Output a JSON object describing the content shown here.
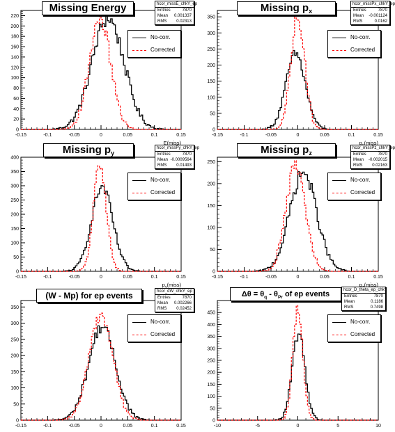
{
  "colors": {
    "nocorr": "#000000",
    "corr": "#ff0000"
  },
  "legend": {
    "nocorr": "No-corr.",
    "corr": "Corrected"
  },
  "stats_labels": {
    "entries": "Entries",
    "mean": "Mean",
    "rms": "RMS"
  },
  "chart_data": [
    {
      "type": "histogram",
      "title": "Missing Energy",
      "xlabel": "E(miss)",
      "xlim": [
        -0.15,
        0.15
      ],
      "ylim": [
        0,
        230
      ],
      "xticks": [
        "-0.15",
        "-0.1",
        "-0.05",
        "0",
        "0.05",
        "0.1",
        "0.15"
      ],
      "yticks": [
        "0",
        "20",
        "40",
        "60",
        "80",
        "100",
        "120",
        "140",
        "160",
        "180",
        "200",
        "220"
      ],
      "stats": {
        "name": "hcor_missE_chkY_ep",
        "entries": "7870",
        "mean": "0.001337",
        "rms": "0.02313"
      },
      "series": [
        {
          "name": "No-corr.",
          "mean": 0.013,
          "sigma": 0.03,
          "peak": 215
        },
        {
          "name": "Corrected",
          "mean": -0.002,
          "sigma": 0.02,
          "peak": 215
        }
      ]
    },
    {
      "type": "histogram",
      "title": "Missing p",
      "title_sub": "x",
      "xlabel": "p",
      "xlabel_sub": "x",
      "xlabel_suffix": "(miss)",
      "xlim": [
        -0.15,
        0.15
      ],
      "ylim": [
        0,
        370
      ],
      "xticks": [
        "-0.15",
        "-0.1",
        "-0.05",
        "0",
        "0.05",
        "0.1",
        "0.15"
      ],
      "yticks": [
        "0",
        "50",
        "100",
        "150",
        "200",
        "250",
        "300",
        "350"
      ],
      "stats": {
        "name": "hcor_missPx_chkY_ep",
        "entries": "7870",
        "mean": "-0.001124",
        "rms": "0.0162"
      },
      "series": [
        {
          "name": "No-corr.",
          "mean": -0.004,
          "sigma": 0.018,
          "peak": 235
        },
        {
          "name": "Corrected",
          "mean": 0.0,
          "sigma": 0.013,
          "peak": 350
        }
      ]
    },
    {
      "type": "histogram",
      "title": "Missing p",
      "title_sub": "y",
      "xlabel": "p",
      "xlabel_sub": "y",
      "xlabel_suffix": "(miss)",
      "xlim": [
        -0.15,
        0.15
      ],
      "ylim": [
        0,
        400
      ],
      "xticks": [
        "-0.15",
        "-0.1",
        "-0.05",
        "0",
        "0.05",
        "0.1",
        "0.15"
      ],
      "yticks": [
        "0",
        "50",
        "100",
        "150",
        "200",
        "250",
        "300",
        "350",
        "400"
      ],
      "stats": {
        "name": "hcor_missPy_chkY_ep",
        "entries": "7870",
        "mean": "-0.0009564",
        "rms": "0.01493"
      },
      "series": [
        {
          "name": "No-corr.",
          "mean": 0.002,
          "sigma": 0.02,
          "peak": 295
        },
        {
          "name": "Corrected",
          "mean": -0.002,
          "sigma": 0.012,
          "peak": 375
        }
      ]
    },
    {
      "type": "histogram",
      "title": "Missing p",
      "title_sub": "z",
      "xlabel": "p",
      "xlabel_sub": "z",
      "xlabel_suffix": "(miss)",
      "xlim": [
        -0.15,
        0.15
      ],
      "ylim": [
        0,
        260
      ],
      "xticks": [
        "-0.15",
        "-0.1",
        "-0.05",
        "0",
        "0.05",
        "0.1",
        "0.15"
      ],
      "yticks": [
        "0",
        "50",
        "100",
        "150",
        "200",
        "250"
      ],
      "stats": {
        "name": "hcor_missPz_chkY_ep",
        "entries": "7870",
        "mean": "-0.002015",
        "rms": "0.02163"
      },
      "series": [
        {
          "name": "No-corr.",
          "mean": 0.01,
          "sigma": 0.025,
          "peak": 225
        },
        {
          "name": "Corrected",
          "mean": -0.004,
          "sigma": 0.018,
          "peak": 240
        }
      ]
    },
    {
      "type": "histogram",
      "title": "(W - Mp) for ep events",
      "xlabel": "",
      "xlim": [
        -0.15,
        0.15
      ],
      "ylim": [
        0,
        370
      ],
      "xticks": [
        "-0.15",
        "-0.1",
        "-0.05",
        "0",
        "0.05",
        "0.1",
        "0.15"
      ],
      "yticks": [
        "0",
        "50",
        "100",
        "150",
        "200",
        "250",
        "300",
        "350"
      ],
      "stats": {
        "name": "hcor_dW_chkY_ep",
        "entries": "7870",
        "mean": "0.002266",
        "rms": "0.02452"
      },
      "series": [
        {
          "name": "No-corr.",
          "mean": 0.002,
          "sigma": 0.025,
          "peak": 290
        },
        {
          "name": "Corrected",
          "mean": 0.0,
          "sigma": 0.022,
          "peak": 325
        }
      ]
    },
    {
      "type": "histogram",
      "title": "Δθ = θ",
      "title_sub": "q",
      "title_mid": " - θ",
      "title_sub2": "Pr",
      "title_suffix": " of ep events",
      "xlabel": "",
      "xlim": [
        -10,
        10
      ],
      "ylim": [
        0,
        500
      ],
      "xticks": [
        "-10",
        "-5",
        "0",
        "5",
        "10"
      ],
      "yticks": [
        "0",
        "50",
        "100",
        "150",
        "200",
        "250",
        "300",
        "350",
        "400",
        "450"
      ],
      "stats": {
        "name": "hcor_D_theta_ep_chkY",
        "entries": "7870",
        "mean": "0.1186",
        "rms": "0.7498"
      },
      "series": [
        {
          "name": "No-corr.",
          "mean": 0.1,
          "sigma": 0.8,
          "peak": 360
        },
        {
          "name": "Corrected",
          "mean": 0.0,
          "sigma": 0.62,
          "peak": 470
        }
      ]
    }
  ]
}
